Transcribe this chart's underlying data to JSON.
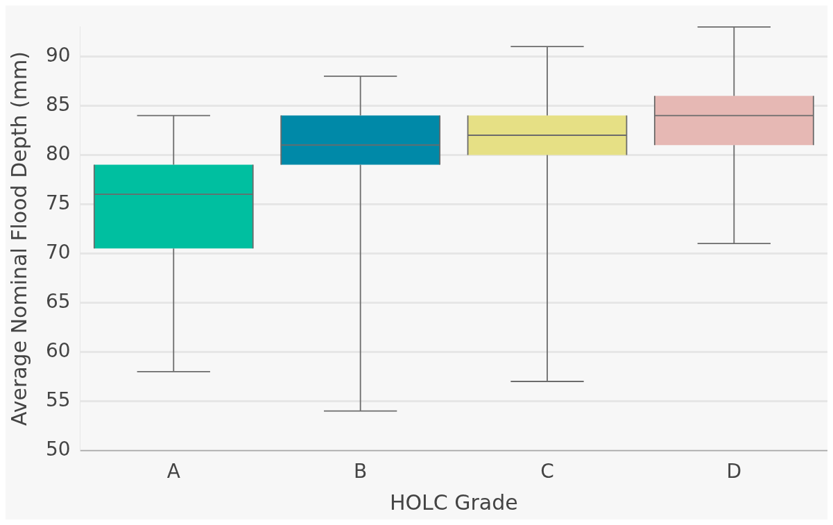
{
  "chart_data": {
    "type": "box",
    "categories": [
      "A",
      "B",
      "C",
      "D"
    ],
    "boxes": [
      {
        "low": 58,
        "q1": 70.5,
        "median": 76,
        "q3": 79,
        "high": 84
      },
      {
        "low": 54,
        "q1": 79,
        "median": 81,
        "q3": 84,
        "high": 88
      },
      {
        "low": 57,
        "q1": 80,
        "median": 82,
        "q3": 84,
        "high": 91
      },
      {
        "low": 71,
        "q1": 81,
        "median": 84,
        "q3": 86,
        "high": 93
      }
    ],
    "colors": [
      "#00bfa0",
      "#0089a8",
      "#e6e085",
      "#e6b8b4"
    ],
    "xlabel": "HOLC Grade",
    "ylabel": "Average Nominal Flood Depth (mm)",
    "ylim": [
      50,
      93
    ],
    "yticks": [
      50,
      55,
      60,
      65,
      70,
      75,
      80,
      85,
      90
    ],
    "grid": "y"
  }
}
